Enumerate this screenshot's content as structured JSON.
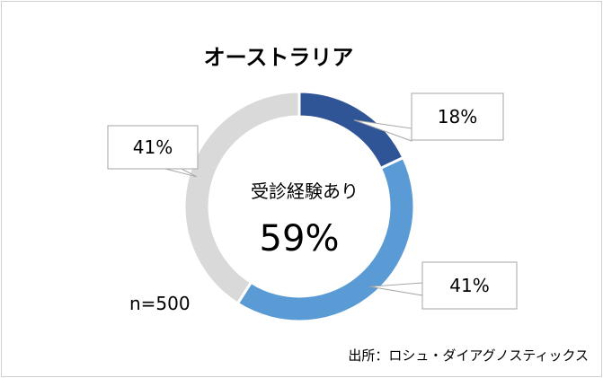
{
  "chart_data": {
    "type": "pie",
    "title": "オーストラリア",
    "hole": true,
    "slices": [
      {
        "label": "18%",
        "value": 18,
        "color": "#2f5597"
      },
      {
        "label": "41%",
        "value": 41,
        "color": "#5b9bd5"
      },
      {
        "label": "41%",
        "value": 41,
        "color": "#d9d9d9"
      }
    ],
    "center_label": "受診経験あり",
    "center_value": "59%",
    "sample_size": "n=500",
    "source": "出所：ロシュ・ダイアグノスティックス"
  }
}
